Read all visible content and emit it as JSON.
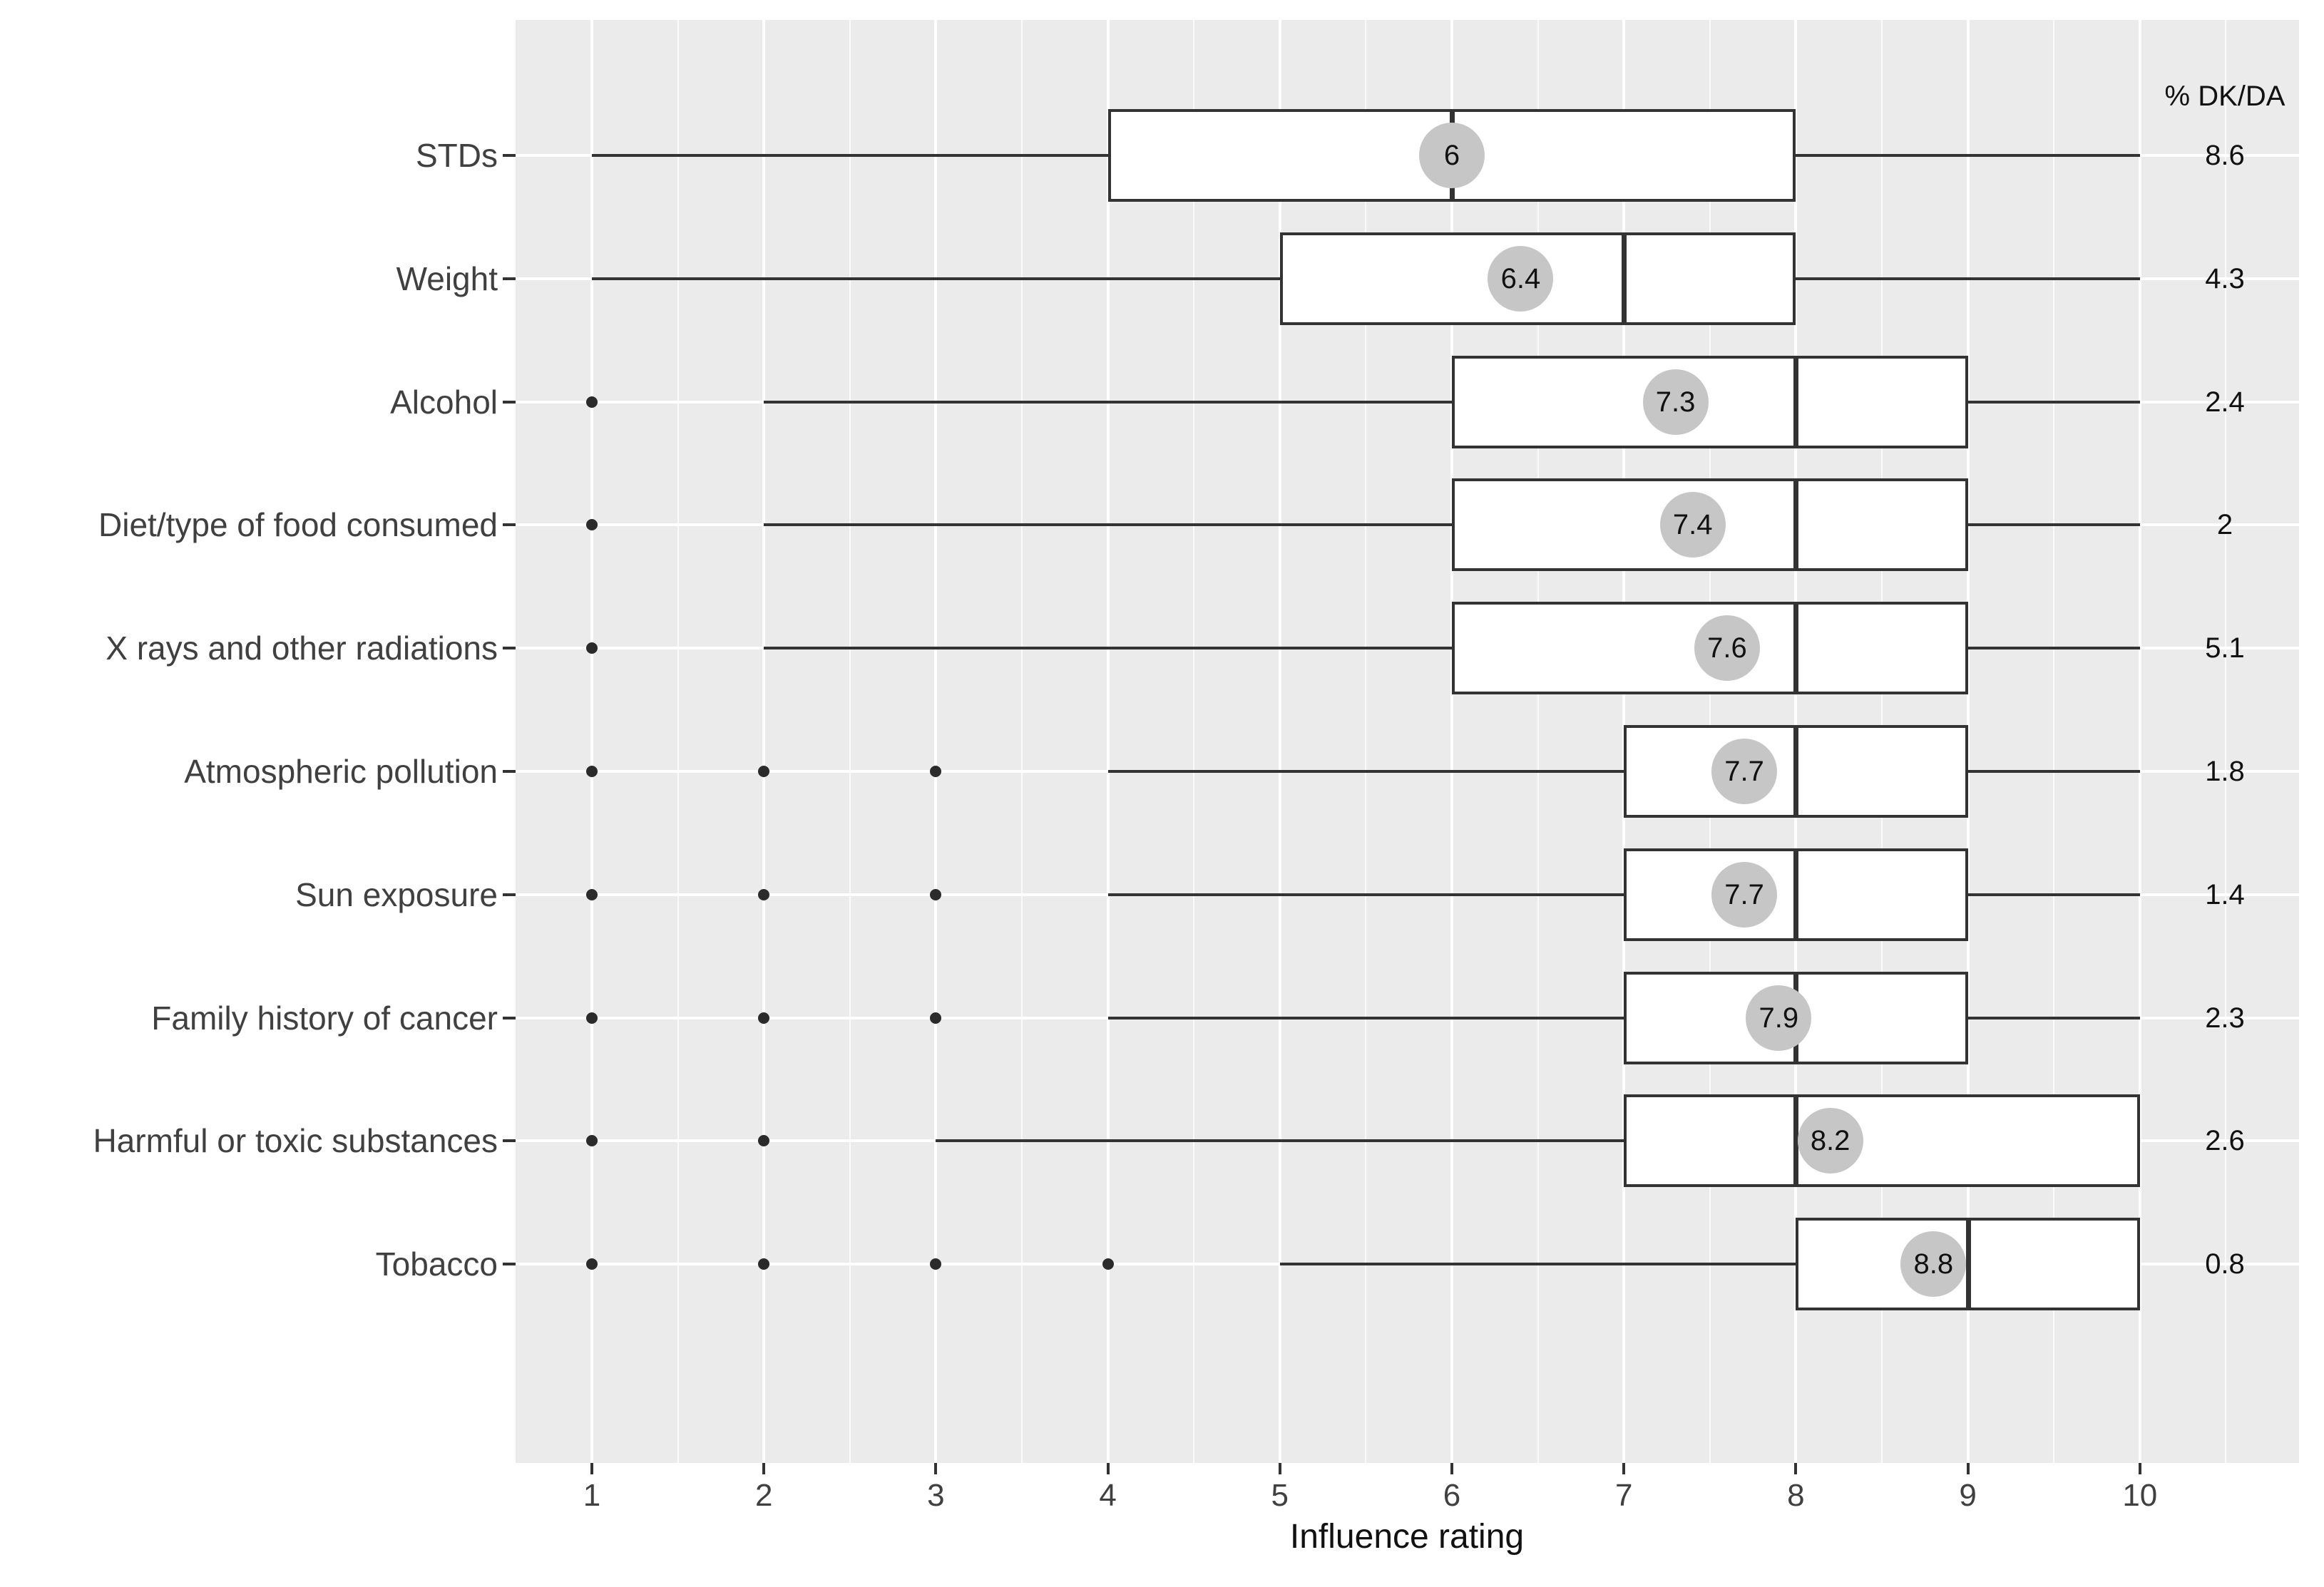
{
  "dk_column": {
    "header": "% DK/DA"
  },
  "colors": {
    "panel_background": "#EBEBEB",
    "gridline": "#FFFFFF",
    "box_outline": "#333333",
    "box_fill": "#FFFFFF",
    "mean_dot_fill": "#C6C6C6",
    "outlier_dot": "#2B2B2B",
    "axis_text": "#404040",
    "label_text": "#111111"
  },
  "chart_data": {
    "type": "boxplot",
    "orientation": "horizontal",
    "title": "",
    "xlabel": "Influence rating",
    "ylabel": "",
    "x_ticks": [
      "1",
      "2",
      "3",
      "4",
      "5",
      "6",
      "7",
      "8",
      "9",
      "10"
    ],
    "x_tick_values": [
      1,
      2,
      3,
      4,
      5,
      6,
      7,
      8,
      9,
      10
    ],
    "xlim_shown": [
      0.55,
      10.93
    ],
    "grid": {
      "major": "on",
      "minor_step": 0.5,
      "style": "white lines on grey panel"
    },
    "legend_position": "none",
    "right_annotation_column": "% DK/DA",
    "rows": [
      {
        "label": "STDs",
        "whisker_low": 1,
        "q1": 4,
        "median": 6,
        "q3": 8,
        "whisker_high": 10,
        "outliers": [],
        "mean": 6,
        "mean_label": "6",
        "dk_da": "8.6"
      },
      {
        "label": "Weight",
        "whisker_low": 1,
        "q1": 5,
        "median": 7,
        "q3": 8,
        "whisker_high": 10,
        "outliers": [],
        "mean": 6.4,
        "mean_label": "6.4",
        "dk_da": "4.3"
      },
      {
        "label": "Alcohol",
        "whisker_low": 2,
        "q1": 6,
        "median": 8,
        "q3": 9,
        "whisker_high": 10,
        "outliers": [
          1
        ],
        "mean": 7.3,
        "mean_label": "7.3",
        "dk_da": "2.4"
      },
      {
        "label": "Diet/type of food consumed",
        "whisker_low": 2,
        "q1": 6,
        "median": 8,
        "q3": 9,
        "whisker_high": 10,
        "outliers": [
          1
        ],
        "mean": 7.4,
        "mean_label": "7.4",
        "dk_da": "2"
      },
      {
        "label": "X rays and other radiations",
        "whisker_low": 2,
        "q1": 6,
        "median": 8,
        "q3": 9,
        "whisker_high": 10,
        "outliers": [
          1
        ],
        "mean": 7.6,
        "mean_label": "7.6",
        "dk_da": "5.1"
      },
      {
        "label": "Atmospheric pollution",
        "whisker_low": 4,
        "q1": 7,
        "median": 8,
        "q3": 9,
        "whisker_high": 10,
        "outliers": [
          1,
          2,
          3
        ],
        "mean": 7.7,
        "mean_label": "7.7",
        "dk_da": "1.8"
      },
      {
        "label": "Sun exposure",
        "whisker_low": 4,
        "q1": 7,
        "median": 8,
        "q3": 9,
        "whisker_high": 10,
        "outliers": [
          1,
          2,
          3
        ],
        "mean": 7.7,
        "mean_label": "7.7",
        "dk_da": "1.4"
      },
      {
        "label": "Family history of cancer",
        "whisker_low": 4,
        "q1": 7,
        "median": 8,
        "q3": 9,
        "whisker_high": 10,
        "outliers": [
          1,
          2,
          3
        ],
        "mean": 7.9,
        "mean_label": "7.9",
        "dk_da": "2.3"
      },
      {
        "label": "Harmful or toxic substances",
        "whisker_low": 3,
        "q1": 7,
        "median": 8,
        "q3": 10,
        "whisker_high": 10,
        "outliers": [
          1,
          2
        ],
        "mean": 8.2,
        "mean_label": "8.2",
        "dk_da": "2.6"
      },
      {
        "label": "Tobacco",
        "whisker_low": 5,
        "q1": 8,
        "median": 9,
        "q3": 10,
        "whisker_high": 10,
        "outliers": [
          1,
          2,
          3,
          4
        ],
        "mean": 8.8,
        "mean_label": "8.8",
        "dk_da": "0.8"
      }
    ]
  }
}
